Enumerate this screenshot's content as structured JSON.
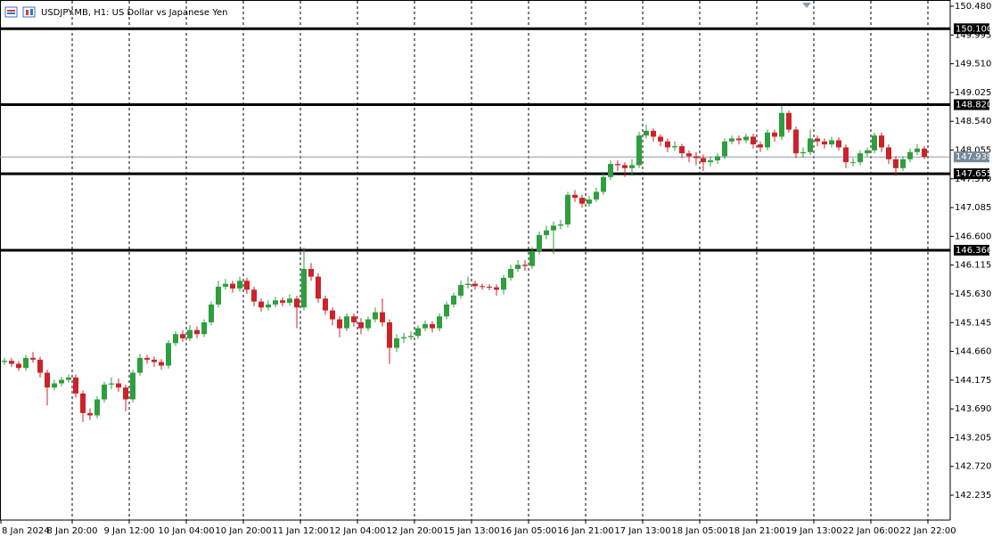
{
  "chart_data": {
    "type": "candlestick",
    "title": "USDJPY.MB, H1:  US Dollar vs Japanese Yen",
    "up_color": "#2e9e3e",
    "down_color": "#cc2229",
    "grid": true,
    "ylim": [
      141.83,
      150.57
    ],
    "yticks": [
      {
        "value": 150.48,
        "label": "150.480"
      },
      149.995,
      {
        "value": 149.51,
        "label": "149.510"
      },
      149.025,
      {
        "value": 148.54,
        "label": "148.540"
      },
      148.055,
      {
        "value": 147.57,
        "label": "147.570"
      },
      147.085,
      {
        "value": 146.6,
        "label": "146.600"
      },
      146.115,
      {
        "value": 145.63,
        "label": "145.630"
      },
      145.145,
      {
        "value": 144.66,
        "label": "144.660"
      },
      144.175,
      {
        "value": 143.69,
        "label": "143.690"
      },
      143.205,
      {
        "value": 142.72,
        "label": "142.720"
      },
      142.235
    ],
    "xlim": [
      0,
      132.75
    ],
    "xticks": [
      {
        "value": 0,
        "label": "8 Jan 2024"
      },
      {
        "value": 10,
        "label": "8 Jan 20:00"
      },
      {
        "value": 18,
        "label": "9 Jan 12:00"
      },
      {
        "value": 26,
        "label": "10 Jan 04:00"
      },
      {
        "value": 34,
        "label": "10 Jan 20:00"
      },
      {
        "value": 42,
        "label": "11 Jan 12:00"
      },
      {
        "value": 50,
        "label": "12 Jan 04:00"
      },
      {
        "value": 58,
        "label": "12 Jan 20:00"
      },
      {
        "value": 66,
        "label": "15 Jan 13:00"
      },
      {
        "value": 74,
        "label": "16 Jan 05:00"
      },
      {
        "value": 82,
        "label": "16 Jan 21:00"
      },
      {
        "value": 90,
        "label": "17 Jan 13:00"
      },
      {
        "value": 98,
        "label": "18 Jan 05:00"
      },
      {
        "value": 106,
        "label": "18 Jan 21:00"
      },
      {
        "value": 114,
        "label": "19 Jan 13:00"
      },
      {
        "value": 122,
        "label": "22 Jan 06:00"
      },
      {
        "value": 130,
        "label": "22 Jan 22:00"
      }
    ],
    "levels": [
      {
        "value": 150.1,
        "label": "150.100"
      },
      {
        "value": 148.82,
        "label": "148.820"
      },
      147.655,
      146.366
    ],
    "current_price": 147.939,
    "ohlc": [
      [
        144.48,
        144.55,
        144.43,
        144.5
      ],
      [
        144.5,
        144.55,
        144.4,
        144.45
      ],
      [
        144.45,
        144.5,
        144.33,
        144.38
      ],
      [
        144.38,
        144.6,
        144.33,
        144.55
      ],
      [
        144.55,
        144.65,
        144.47,
        144.52
      ],
      [
        144.52,
        144.57,
        144.22,
        144.3
      ],
      [
        144.3,
        144.35,
        143.75,
        144.05
      ],
      [
        144.05,
        144.18,
        144.0,
        144.12
      ],
      [
        144.12,
        144.23,
        144.07,
        144.18
      ],
      [
        144.18,
        144.27,
        144.13,
        144.22
      ],
      [
        144.22,
        144.27,
        143.88,
        143.95
      ],
      [
        143.95,
        144.0,
        143.47,
        143.62
      ],
      [
        143.62,
        143.7,
        143.5,
        143.58
      ],
      [
        143.58,
        143.9,
        143.53,
        143.85
      ],
      [
        143.85,
        144.15,
        143.8,
        144.1
      ],
      [
        144.1,
        144.22,
        144.02,
        144.12
      ],
      [
        144.12,
        144.2,
        143.98,
        144.05
      ],
      [
        144.05,
        144.1,
        143.65,
        143.85
      ],
      [
        143.85,
        144.35,
        143.8,
        144.3
      ],
      [
        144.3,
        144.62,
        144.25,
        144.55
      ],
      [
        144.55,
        144.6,
        144.45,
        144.52
      ],
      [
        144.52,
        144.57,
        144.4,
        144.48
      ],
      [
        144.48,
        144.53,
        144.35,
        144.42
      ],
      [
        144.42,
        144.85,
        144.37,
        144.8
      ],
      [
        144.8,
        145.0,
        144.75,
        144.95
      ],
      [
        144.95,
        145.02,
        144.82,
        144.88
      ],
      [
        144.88,
        145.1,
        144.83,
        145.02
      ],
      [
        145.02,
        145.08,
        144.88,
        144.95
      ],
      [
        144.95,
        145.2,
        144.9,
        145.15
      ],
      [
        145.15,
        145.5,
        145.1,
        145.45
      ],
      [
        145.45,
        145.85,
        145.4,
        145.75
      ],
      [
        145.75,
        145.88,
        145.7,
        145.8
      ],
      [
        145.8,
        145.85,
        145.65,
        145.72
      ],
      [
        145.72,
        145.92,
        145.67,
        145.85
      ],
      [
        145.85,
        145.9,
        145.63,
        145.7
      ],
      [
        145.7,
        145.75,
        145.42,
        145.5
      ],
      [
        145.5,
        145.55,
        145.33,
        145.4
      ],
      [
        145.4,
        145.52,
        145.35,
        145.45
      ],
      [
        145.45,
        145.58,
        145.4,
        145.52
      ],
      [
        145.52,
        145.57,
        145.42,
        145.48
      ],
      [
        145.48,
        145.62,
        145.43,
        145.55
      ],
      [
        145.55,
        145.6,
        145.05,
        145.4
      ],
      [
        145.4,
        146.41,
        145.35,
        146.05
      ],
      [
        146.05,
        146.15,
        145.85,
        145.92
      ],
      [
        145.92,
        145.98,
        145.48,
        145.55
      ],
      [
        145.55,
        145.6,
        145.28,
        145.35
      ],
      [
        145.35,
        145.4,
        145.1,
        145.2
      ],
      [
        145.2,
        145.25,
        144.9,
        145.05
      ],
      [
        145.05,
        145.3,
        145.0,
        145.25
      ],
      [
        145.25,
        145.3,
        145.08,
        145.15
      ],
      [
        145.15,
        145.22,
        144.95,
        145.05
      ],
      [
        145.05,
        145.25,
        145.0,
        145.2
      ],
      [
        145.2,
        145.4,
        145.15,
        145.32
      ],
      [
        145.32,
        145.55,
        145.08,
        145.15
      ],
      [
        145.15,
        145.2,
        144.45,
        144.72
      ],
      [
        144.72,
        144.95,
        144.65,
        144.88
      ],
      [
        144.88,
        144.97,
        144.8,
        144.9
      ],
      [
        144.9,
        145.0,
        144.85,
        144.92
      ],
      [
        144.92,
        145.1,
        144.87,
        145.05
      ],
      [
        145.05,
        145.18,
        145.0,
        145.12
      ],
      [
        145.12,
        145.17,
        144.98,
        145.05
      ],
      [
        145.05,
        145.3,
        145.0,
        145.25
      ],
      [
        145.25,
        145.5,
        145.2,
        145.45
      ],
      [
        145.45,
        145.65,
        145.4,
        145.6
      ],
      [
        145.6,
        145.85,
        145.55,
        145.78
      ],
      [
        145.78,
        145.92,
        145.72,
        145.8
      ],
      [
        145.8,
        145.85,
        145.7,
        145.76
      ],
      [
        145.76,
        145.8,
        145.7,
        145.75
      ],
      [
        145.75,
        145.79,
        145.69,
        145.74
      ],
      [
        145.74,
        145.79,
        145.6,
        145.7
      ],
      [
        145.7,
        145.95,
        145.62,
        145.9
      ],
      [
        145.9,
        146.12,
        145.85,
        146.05
      ],
      [
        146.05,
        146.2,
        146.0,
        146.12
      ],
      [
        146.12,
        146.2,
        146.02,
        146.1
      ],
      [
        146.1,
        146.42,
        146.05,
        146.35
      ],
      [
        146.35,
        146.68,
        146.3,
        146.62
      ],
      [
        146.62,
        146.78,
        146.55,
        146.7
      ],
      [
        146.7,
        146.85,
        146.3,
        146.78
      ],
      [
        146.78,
        146.88,
        146.72,
        146.8
      ],
      [
        146.8,
        147.35,
        146.75,
        147.3
      ],
      [
        147.3,
        147.38,
        147.18,
        147.25
      ],
      [
        147.25,
        147.3,
        147.08,
        147.15
      ],
      [
        147.15,
        147.28,
        147.1,
        147.22
      ],
      [
        147.22,
        147.42,
        147.18,
        147.35
      ],
      [
        147.35,
        147.66,
        147.3,
        147.6
      ],
      [
        147.6,
        147.88,
        147.55,
        147.82
      ],
      [
        147.82,
        147.88,
        147.7,
        147.8
      ],
      [
        147.8,
        147.85,
        147.6,
        147.75
      ],
      [
        147.75,
        147.9,
        147.62,
        147.8
      ],
      [
        147.8,
        148.36,
        147.75,
        148.3
      ],
      [
        148.3,
        148.48,
        148.25,
        148.38
      ],
      [
        148.38,
        148.42,
        148.2,
        148.28
      ],
      [
        148.28,
        148.32,
        148.12,
        148.2
      ],
      [
        148.2,
        148.25,
        148.02,
        148.1
      ],
      [
        148.1,
        148.2,
        148.04,
        148.12
      ],
      [
        148.12,
        148.16,
        147.92,
        148.0
      ],
      [
        148.0,
        148.05,
        147.85,
        147.95
      ],
      [
        147.95,
        148.02,
        147.8,
        147.92
      ],
      [
        147.92,
        147.98,
        147.7,
        147.85
      ],
      [
        147.85,
        147.95,
        147.78,
        147.88
      ],
      [
        147.88,
        148.0,
        147.82,
        147.95
      ],
      [
        147.95,
        148.25,
        147.9,
        148.2
      ],
      [
        148.2,
        148.3,
        148.15,
        148.25
      ],
      [
        148.25,
        148.3,
        148.15,
        148.22
      ],
      [
        148.22,
        148.33,
        148.17,
        148.28
      ],
      [
        148.28,
        148.33,
        148.08,
        148.15
      ],
      [
        148.15,
        148.2,
        148.02,
        148.1
      ],
      [
        148.1,
        148.4,
        148.05,
        148.35
      ],
      [
        148.35,
        148.4,
        148.2,
        148.28
      ],
      [
        148.28,
        148.8,
        148.22,
        148.68
      ],
      [
        148.68,
        148.72,
        148.35,
        148.4
      ],
      [
        148.4,
        148.45,
        147.92,
        148.0
      ],
      [
        148.0,
        148.1,
        147.92,
        148.02
      ],
      [
        148.02,
        148.4,
        147.97,
        148.25
      ],
      [
        148.25,
        148.3,
        148.12,
        148.2
      ],
      [
        148.2,
        148.25,
        148.08,
        148.15
      ],
      [
        148.15,
        148.28,
        148.1,
        148.22
      ],
      [
        148.22,
        148.27,
        148.05,
        148.1
      ],
      [
        148.1,
        148.15,
        147.75,
        147.85
      ],
      [
        147.85,
        147.92,
        147.78,
        147.85
      ],
      [
        147.85,
        148.05,
        147.8,
        148.0
      ],
      [
        148.0,
        148.1,
        147.95,
        148.05
      ],
      [
        148.05,
        148.35,
        148.0,
        148.3
      ],
      [
        148.3,
        148.35,
        148.02,
        148.1
      ],
      [
        148.1,
        148.15,
        147.82,
        147.9
      ],
      [
        147.9,
        147.95,
        147.62,
        147.75
      ],
      [
        147.75,
        147.95,
        147.7,
        147.9
      ],
      [
        147.9,
        148.08,
        147.85,
        148.02
      ],
      [
        148.02,
        148.15,
        147.97,
        148.08
      ],
      [
        148.08,
        148.12,
        147.9,
        147.94
      ]
    ]
  }
}
